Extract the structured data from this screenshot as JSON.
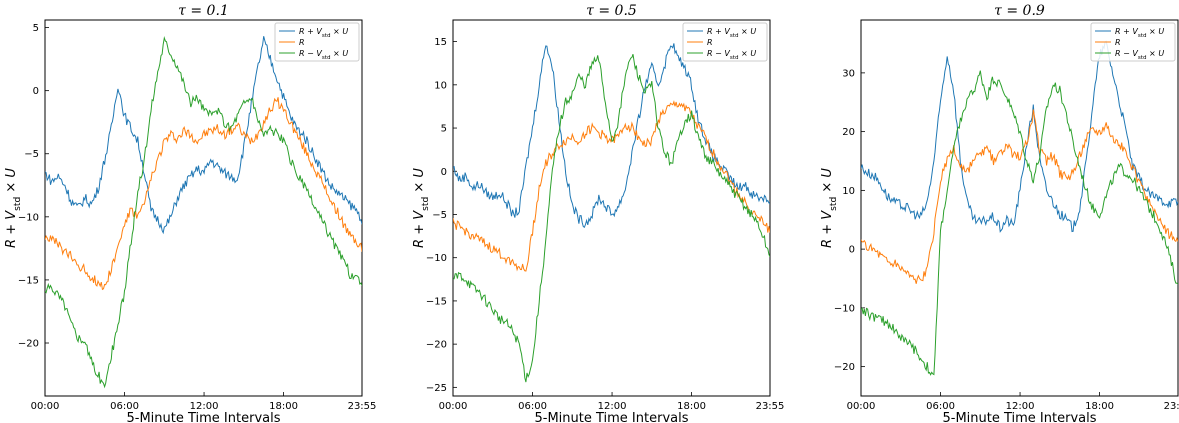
{
  "figure": {
    "xlabel": "5-Minute Time Intervals",
    "ylabel": "R + V_std × U",
    "xtick_labels": [
      "00:00",
      "06:00",
      "12:00",
      "18:00",
      "23:55"
    ],
    "legend": [
      "R + V_std × U",
      "R",
      "R − V_std × U"
    ],
    "colors": {
      "upper": "#1f77b4",
      "mid": "#ff7f0e",
      "lower": "#2ca02c"
    }
  },
  "chart_data": [
    {
      "type": "line",
      "title": "τ = 0.1",
      "xlabel": "5-Minute Time Intervals",
      "ylabel": "R + V_std × U",
      "x_hours": [
        0,
        0.5,
        1,
        1.5,
        2,
        2.5,
        3,
        3.5,
        4,
        4.5,
        5,
        5.5,
        6,
        6.5,
        7,
        7.5,
        8,
        8.5,
        9,
        9.5,
        10,
        10.5,
        11,
        11.5,
        12,
        12.5,
        13,
        13.5,
        14,
        14.5,
        15,
        15.5,
        16,
        16.5,
        17,
        17.5,
        18,
        18.5,
        19,
        19.5,
        20,
        20.5,
        21,
        21.5,
        22,
        22.5,
        23,
        23.5,
        23.92
      ],
      "ylim": [
        -24.2,
        5.6
      ],
      "yticks": [
        5,
        0,
        -5,
        -10,
        -15,
        -20
      ],
      "legend_position": "upper right",
      "series": [
        {
          "name": "R + V_std × U",
          "values": [
            -6.5,
            -7.2,
            -6.8,
            -7.5,
            -8.8,
            -9.3,
            -8.5,
            -9.0,
            -7.8,
            -5.5,
            -3.0,
            0.5,
            -2.0,
            -3.0,
            -4.0,
            -6.5,
            -9.5,
            -10.2,
            -11.0,
            -10.0,
            -8.5,
            -7.5,
            -6.8,
            -6.2,
            -6.5,
            -5.5,
            -6.0,
            -6.5,
            -6.8,
            -7.0,
            -4.5,
            -1.5,
            1.5,
            4.0,
            2.5,
            1.0,
            -0.5,
            -2.0,
            -3.0,
            -3.5,
            -4.5,
            -5.5,
            -6.5,
            -7.5,
            -8.0,
            -8.5,
            -9.0,
            -9.5,
            -10.2
          ]
        },
        {
          "name": "R",
          "values": [
            -11.5,
            -11.8,
            -12.2,
            -12.8,
            -13.2,
            -13.8,
            -14.2,
            -14.8,
            -15.2,
            -15.6,
            -14.0,
            -12.5,
            -10.5,
            -9.5,
            -10.0,
            -9.0,
            -7.0,
            -5.5,
            -4.0,
            -3.5,
            -3.8,
            -3.2,
            -3.5,
            -4.0,
            -3.5,
            -3.2,
            -3.0,
            -3.5,
            -3.2,
            -2.8,
            -3.5,
            -4.0,
            -3.5,
            -2.5,
            -1.5,
            -0.8,
            -1.5,
            -2.5,
            -3.5,
            -4.5,
            -5.5,
            -6.5,
            -7.5,
            -8.5,
            -9.5,
            -10.5,
            -11.5,
            -12.0,
            -12.5
          ]
        },
        {
          "name": "R − V_std × U",
          "values": [
            -16.0,
            -15.5,
            -16.2,
            -17.0,
            -18.5,
            -19.5,
            -19.8,
            -21.5,
            -22.5,
            -23.5,
            -21.0,
            -18.5,
            -16.0,
            -12.0,
            -8.0,
            -5.5,
            -1.5,
            1.5,
            4.0,
            3.0,
            2.0,
            0.5,
            -1.0,
            -0.5,
            -1.5,
            -2.0,
            -1.5,
            -2.5,
            -3.0,
            -2.0,
            -1.0,
            -0.5,
            -2.0,
            -3.5,
            -3.0,
            -3.5,
            -4.0,
            -5.5,
            -6.5,
            -7.5,
            -8.5,
            -9.5,
            -10.5,
            -11.5,
            -12.5,
            -13.5,
            -14.5,
            -15.0,
            -15.3
          ]
        }
      ]
    },
    {
      "type": "line",
      "title": "τ = 0.5",
      "xlabel": "5-Minute Time Intervals",
      "ylabel": "R + V_std × U",
      "x_hours": [
        0,
        0.5,
        1,
        1.5,
        2,
        2.5,
        3,
        3.5,
        4,
        4.5,
        5,
        5.5,
        6,
        6.5,
        7,
        7.5,
        8,
        8.5,
        9,
        9.5,
        10,
        10.5,
        11,
        11.5,
        12,
        12.5,
        13,
        13.5,
        14,
        14.5,
        15,
        15.5,
        16,
        16.5,
        17,
        17.5,
        18,
        18.5,
        19,
        19.5,
        20,
        20.5,
        21,
        21.5,
        22,
        22.5,
        23,
        23.5,
        23.92
      ],
      "ylim": [
        -26,
        17.5
      ],
      "yticks": [
        15,
        10,
        5,
        0,
        -5,
        -10,
        -15,
        -20,
        -25
      ],
      "legend_position": "upper right",
      "series": [
        {
          "name": "R + V_std × U",
          "values": [
            0.5,
            -1.0,
            -0.5,
            -2.0,
            -1.5,
            -2.5,
            -3.0,
            -2.5,
            -3.5,
            -5.0,
            -4.5,
            0.5,
            5.0,
            10.0,
            15.0,
            12.0,
            6.0,
            0.0,
            -4.0,
            -5.5,
            -6.0,
            -5.0,
            -3.0,
            -4.0,
            -5.0,
            -4.0,
            -2.0,
            2.0,
            6.0,
            10.0,
            12.0,
            10.0,
            12.5,
            15.0,
            13.0,
            12.0,
            10.0,
            6.0,
            4.0,
            2.0,
            1.0,
            0.0,
            -1.0,
            -2.0,
            -1.5,
            -2.5,
            -3.0,
            -3.0,
            -3.5
          ]
        },
        {
          "name": "R",
          "values": [
            -6.0,
            -6.5,
            -7.0,
            -7.5,
            -8.0,
            -8.5,
            -9.0,
            -9.5,
            -10.0,
            -10.5,
            -11.0,
            -11.5,
            -7.0,
            -2.0,
            1.0,
            2.0,
            3.0,
            3.5,
            4.0,
            3.5,
            4.5,
            5.0,
            4.5,
            4.0,
            3.5,
            4.0,
            5.5,
            5.0,
            4.0,
            3.0,
            3.5,
            6.0,
            7.0,
            7.5,
            7.8,
            7.5,
            6.5,
            5.0,
            4.0,
            2.5,
            1.0,
            0.0,
            -1.5,
            -2.5,
            -3.5,
            -4.5,
            -5.5,
            -6.0,
            -7.0
          ]
        },
        {
          "name": "R − V_std × U",
          "values": [
            -12.5,
            -12.0,
            -12.5,
            -13.5,
            -14.0,
            -15.0,
            -16.0,
            -17.0,
            -17.5,
            -18.5,
            -20.0,
            -24.0,
            -22.0,
            -15.0,
            -8.0,
            0.0,
            5.0,
            8.0,
            9.0,
            11.0,
            10.0,
            12.5,
            13.0,
            8.0,
            3.5,
            6.0,
            11.0,
            13.5,
            11.0,
            9.0,
            10.0,
            5.0,
            2.0,
            1.0,
            3.5,
            6.0,
            6.5,
            4.0,
            2.0,
            1.0,
            0.0,
            -1.0,
            -2.0,
            -3.0,
            -4.0,
            -5.0,
            -6.0,
            -8.0,
            -10.0
          ]
        }
      ]
    },
    {
      "type": "line",
      "title": "τ = 0.9",
      "xlabel": "5-Minute Time Intervals",
      "ylabel": "R + V_std × U",
      "x_hours": [
        0,
        0.5,
        1,
        1.5,
        2,
        2.5,
        3,
        3.5,
        4,
        4.5,
        5,
        5.5,
        6,
        6.5,
        7,
        7.5,
        8,
        8.5,
        9,
        9.5,
        10,
        10.5,
        11,
        11.5,
        12,
        12.5,
        13,
        13.5,
        14,
        14.5,
        15,
        15.5,
        16,
        16.5,
        17,
        17.5,
        18,
        18.5,
        19,
        19.5,
        20,
        20.5,
        21,
        21.5,
        22,
        22.5,
        23,
        23.5,
        23.92
      ],
      "ylim": [
        -25,
        39
      ],
      "yticks": [
        30,
        20,
        10,
        0,
        -10,
        -20
      ],
      "legend_position": "upper right",
      "series": [
        {
          "name": "R + V_std × U",
          "values": [
            14.0,
            13.0,
            12.5,
            11.0,
            9.0,
            8.0,
            7.5,
            7.0,
            6.0,
            5.5,
            8.0,
            15.0,
            25.0,
            33.0,
            27.0,
            15.0,
            8.0,
            5.0,
            4.5,
            5.0,
            5.5,
            3.5,
            5.0,
            4.0,
            10.0,
            18.0,
            24.0,
            15.0,
            10.0,
            8.0,
            6.0,
            5.0,
            3.5,
            7.0,
            15.0,
            25.0,
            33.0,
            35.0,
            30.0,
            25.0,
            20.0,
            14.0,
            12.0,
            10.0,
            9.0,
            8.5,
            8.0,
            8.0,
            8.0
          ]
        },
        {
          "name": "R",
          "values": [
            1.0,
            0.5,
            0.0,
            -1.0,
            -2.0,
            -2.5,
            -3.0,
            -4.0,
            -5.0,
            -5.5,
            -3.5,
            3.0,
            12.0,
            15.0,
            17.0,
            14.0,
            13.0,
            15.0,
            16.0,
            17.0,
            15.0,
            16.0,
            17.5,
            16.0,
            16.0,
            18.0,
            23.0,
            17.0,
            15.0,
            16.0,
            13.0,
            12.0,
            13.0,
            16.0,
            19.0,
            20.5,
            20.0,
            21.5,
            19.0,
            18.0,
            16.0,
            14.0,
            11.0,
            9.0,
            7.0,
            5.0,
            3.0,
            2.0,
            1.0
          ]
        },
        {
          "name": "R − V_std × U",
          "values": [
            -10.0,
            -11.0,
            -11.5,
            -12.0,
            -12.5,
            -13.5,
            -15.0,
            -16.0,
            -17.0,
            -18.5,
            -20.0,
            -22.0,
            3.0,
            10.0,
            17.0,
            22.0,
            25.0,
            27.0,
            30.0,
            26.0,
            29.0,
            28.0,
            26.0,
            23.0,
            20.0,
            15.0,
            12.0,
            16.0,
            24.0,
            28.0,
            27.0,
            23.0,
            18.0,
            14.0,
            10.0,
            7.0,
            6.0,
            9.0,
            12.0,
            14.0,
            13.0,
            12.0,
            10.0,
            8.0,
            6.0,
            4.0,
            1.0,
            -3.0,
            -6.5
          ]
        }
      ]
    }
  ]
}
